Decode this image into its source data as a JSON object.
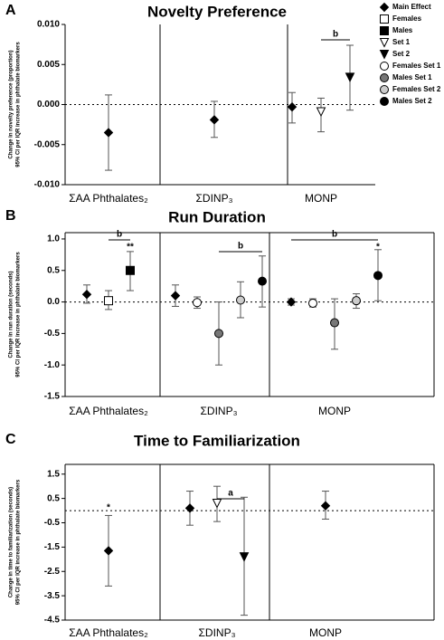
{
  "chart_data": [
    {
      "type": "errorbar",
      "panel": "A",
      "title": "Novelty Preference",
      "ylabel": [
        "Change in novelty preference (proportion)",
        "95% CI per IQR increase in phthalate biomarkers"
      ],
      "categories": [
        "ΣAA Phthalates₂",
        "ΣDINP₃",
        "MONP"
      ],
      "ylim": [
        -0.01,
        0.01
      ],
      "yticks": [
        {
          "value": 0.01,
          "label": "0.010"
        },
        0.005,
        {
          "value": 0,
          "label": "0.000"
        },
        -0.005,
        {
          "value": -0.01,
          "label": "-0.010"
        }
      ],
      "annotations": [
        "b"
      ],
      "series": [
        {
          "name": "Main Effect",
          "marker": "diamond",
          "color": "#000000",
          "values": [
            -0.0035,
            -0.0019,
            -0.0003
          ],
          "ci_low": [
            -0.0082,
            -0.0041,
            -0.0023
          ],
          "ci_high": [
            0.0012,
            0.0004,
            0.0015
          ]
        },
        {
          "name": "Females",
          "marker": "square",
          "color": "#ffffff",
          "values": [
            null,
            null,
            null
          ],
          "ci_low": [
            null,
            null,
            null
          ],
          "ci_high": [
            null,
            null,
            null
          ]
        },
        {
          "name": "Males",
          "marker": "square",
          "color": "#000000",
          "values": [
            null,
            null,
            null
          ],
          "ci_low": [
            null,
            null,
            null
          ],
          "ci_high": [
            null,
            null,
            null
          ]
        },
        {
          "name": "Set 1",
          "marker": "triangle",
          "color": "#ffffff",
          "values": [
            null,
            null,
            -0.0009
          ],
          "ci_low": [
            null,
            null,
            -0.0034
          ],
          "ci_high": [
            null,
            null,
            0.0008
          ]
        },
        {
          "name": "Set 2",
          "marker": "triangle",
          "color": "#000000",
          "values": [
            null,
            null,
            0.0034
          ],
          "ci_low": [
            null,
            null,
            -0.0007
          ],
          "ci_high": [
            null,
            null,
            0.0074
          ]
        },
        {
          "name": "Females Set 1",
          "marker": "circle",
          "color": "#ffffff",
          "values": [
            null,
            null,
            null
          ],
          "ci_low": [
            null,
            null,
            null
          ],
          "ci_high": [
            null,
            null,
            null
          ]
        },
        {
          "name": "Males Set 1",
          "marker": "circle",
          "color": "#777777",
          "values": [
            null,
            null,
            null
          ],
          "ci_low": [
            null,
            null,
            null
          ],
          "ci_high": [
            null,
            null,
            null
          ]
        },
        {
          "name": "Females Set 2",
          "marker": "circle",
          "color": "#cccccc",
          "values": [
            null,
            null,
            null
          ],
          "ci_low": [
            null,
            null,
            null
          ],
          "ci_high": [
            null,
            null,
            null
          ]
        },
        {
          "name": "Males Set 2",
          "marker": "circle",
          "color": "#000000",
          "values": [
            null,
            null,
            null
          ],
          "ci_low": [
            null,
            null,
            null
          ],
          "ci_high": [
            null,
            null,
            null
          ]
        }
      ]
    },
    {
      "type": "errorbar",
      "panel": "B",
      "title": "Run Duration",
      "ylabel": [
        "Change in run duration (seconds)",
        "95% CI per IQR increase in phthalate biomarkers"
      ],
      "categories": [
        "ΣAA Phthalates₂",
        "ΣDINP₃",
        "MONP"
      ],
      "ylim": [
        -1.5,
        1.1
      ],
      "yticks": [
        {
          "value": 1,
          "label": "1.0"
        },
        0.5,
        {
          "value": 0,
          "label": "0.0"
        },
        -0.5,
        {
          "value": -1,
          "label": "-1.0"
        },
        -1.5
      ],
      "annotations": [
        "b",
        "**",
        "b",
        "b",
        "*"
      ],
      "series": [
        {
          "name": "Main Effect",
          "marker": "diamond",
          "color": "#000000",
          "values": [
            0.12,
            0.1,
            0.0
          ],
          "ci_low": [
            -0.02,
            -0.07,
            -0.05
          ],
          "ci_high": [
            0.27,
            0.27,
            0.05
          ]
        },
        {
          "name": "Females",
          "marker": "square",
          "color": "#ffffff",
          "values": [
            0.02,
            null,
            null
          ],
          "ci_low": [
            -0.12,
            null,
            null
          ],
          "ci_high": [
            0.18,
            null,
            null
          ]
        },
        {
          "name": "Males",
          "marker": "square",
          "color": "#000000",
          "values": [
            0.5,
            null,
            null
          ],
          "ci_low": [
            0.18,
            null,
            null
          ],
          "ci_high": [
            0.8,
            null,
            null
          ]
        },
        {
          "name": "Set 1",
          "marker": "triangle",
          "color": "#ffffff",
          "values": [
            null,
            null,
            null
          ],
          "ci_low": [
            null,
            null,
            null
          ],
          "ci_high": [
            null,
            null,
            null
          ]
        },
        {
          "name": "Set 2",
          "marker": "triangle",
          "color": "#000000",
          "values": [
            null,
            null,
            null
          ],
          "ci_low": [
            null,
            null,
            null
          ],
          "ci_high": [
            null,
            null,
            null
          ]
        },
        {
          "name": "Females Set 1",
          "marker": "circle",
          "color": "#ffffff",
          "values": [
            null,
            -0.01,
            -0.02
          ],
          "ci_low": [
            null,
            -0.1,
            -0.08
          ],
          "ci_high": [
            null,
            0.08,
            0.05
          ]
        },
        {
          "name": "Males Set 1",
          "marker": "circle",
          "color": "#777777",
          "values": [
            null,
            -0.5,
            -0.33
          ],
          "ci_low": [
            null,
            -1.0,
            -0.75
          ],
          "ci_high": [
            null,
            0.0,
            0.05
          ]
        },
        {
          "name": "Females Set 2",
          "marker": "circle",
          "color": "#cccccc",
          "values": [
            null,
            0.03,
            0.02
          ],
          "ci_low": [
            null,
            -0.25,
            -0.1
          ],
          "ci_high": [
            null,
            0.32,
            0.13
          ]
        },
        {
          "name": "Males Set 2",
          "marker": "circle",
          "color": "#000000",
          "values": [
            null,
            0.33,
            0.42
          ],
          "ci_low": [
            null,
            -0.08,
            0.02
          ],
          "ci_high": [
            null,
            0.73,
            0.83
          ]
        }
      ]
    },
    {
      "type": "errorbar",
      "panel": "C",
      "title": "Time to Familiarization",
      "ylabel": [
        "Change in time to familiarization (seconds)",
        "95% CI per IQR increase in phthalate biomarkers"
      ],
      "categories": [
        "ΣAA Phthalates₂",
        "ΣDINP₃",
        "MONP"
      ],
      "ylim": [
        -4.5,
        1.9
      ],
      "yticks": [
        1.5,
        0.5,
        -0.5,
        -1.5,
        -2.5,
        -3.5,
        -4.5
      ],
      "annotations": [
        "*",
        "a"
      ],
      "series": [
        {
          "name": "Main Effect",
          "marker": "diamond",
          "color": "#000000",
          "values": [
            -1.65,
            0.1,
            0.2
          ],
          "ci_low": [
            -3.1,
            -0.6,
            -0.35
          ],
          "ci_high": [
            -0.2,
            0.8,
            0.8
          ]
        },
        {
          "name": "Females",
          "marker": "square",
          "color": "#ffffff",
          "values": [
            null,
            null,
            null
          ],
          "ci_low": [
            null,
            null,
            null
          ],
          "ci_high": [
            null,
            null,
            null
          ]
        },
        {
          "name": "Males",
          "marker": "square",
          "color": "#000000",
          "values": [
            null,
            null,
            null
          ],
          "ci_low": [
            null,
            null,
            null
          ],
          "ci_high": [
            null,
            null,
            null
          ]
        },
        {
          "name": "Set 1",
          "marker": "triangle",
          "color": "#ffffff",
          "values": [
            null,
            0.3,
            null
          ],
          "ci_low": [
            null,
            -0.45,
            null
          ],
          "ci_high": [
            null,
            1.0,
            null
          ]
        },
        {
          "name": "Set 2",
          "marker": "triangle",
          "color": "#000000",
          "values": [
            null,
            -1.9,
            null
          ],
          "ci_low": [
            null,
            -4.3,
            null
          ],
          "ci_high": [
            null,
            0.55,
            null
          ]
        },
        {
          "name": "Females Set 1",
          "marker": "circle",
          "color": "#ffffff",
          "values": [
            null,
            null,
            null
          ],
          "ci_low": [
            null,
            null,
            null
          ],
          "ci_high": [
            null,
            null,
            null
          ]
        },
        {
          "name": "Males Set 1",
          "marker": "circle",
          "color": "#777777",
          "values": [
            null,
            null,
            null
          ],
          "ci_low": [
            null,
            null,
            null
          ],
          "ci_high": [
            null,
            null,
            null
          ]
        },
        {
          "name": "Females Set 2",
          "marker": "circle",
          "color": "#cccccc",
          "values": [
            null,
            null,
            null
          ],
          "ci_low": [
            null,
            null,
            null
          ],
          "ci_high": [
            null,
            null,
            null
          ]
        },
        {
          "name": "Males Set 2",
          "marker": "circle",
          "color": "#000000",
          "values": [
            null,
            null,
            null
          ],
          "ci_low": [
            null,
            null,
            null
          ],
          "ci_high": [
            null,
            null,
            null
          ]
        }
      ]
    }
  ]
}
